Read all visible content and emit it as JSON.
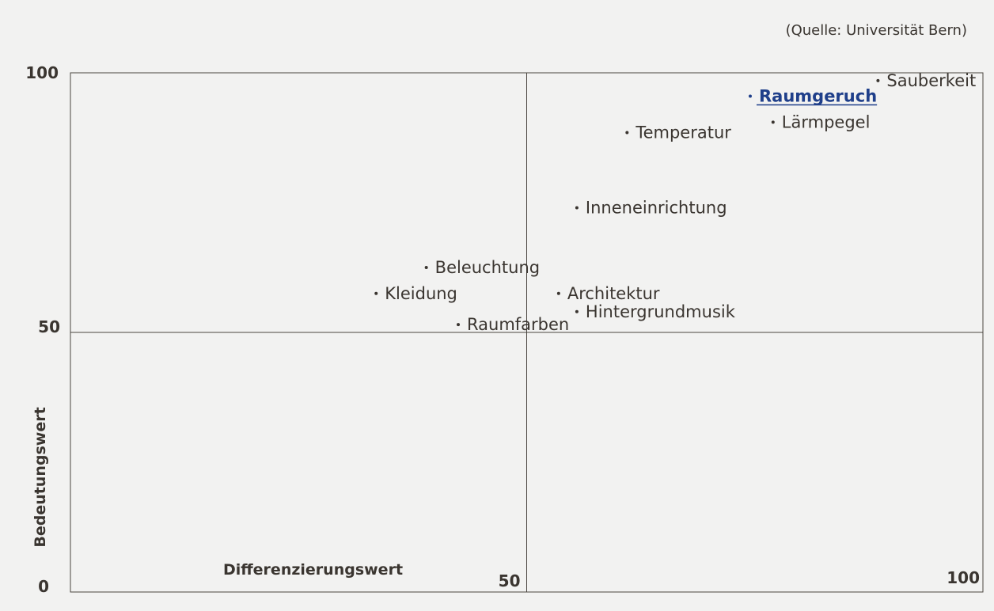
{
  "source": "(Quelle: Universität Bern)",
  "chart_data": {
    "type": "scatter",
    "title": "",
    "xlabel": "Differenzierungswert",
    "ylabel": "Bedeutungswert",
    "xlim": [
      0,
      100
    ],
    "ylim": [
      0,
      100
    ],
    "x_ticks": [
      "50",
      "100"
    ],
    "y_ticks": [
      "100",
      "50",
      "0"
    ],
    "quadrant_lines": {
      "x": 50,
      "y": 50
    },
    "grid": false,
    "highlight_color": "#1f3f8a",
    "points": [
      {
        "label": "Sauberkeit",
        "x": 88.5,
        "y": 98.5
      },
      {
        "label": "Raumgeruch",
        "x": 74.5,
        "y": 95.5,
        "highlight": true
      },
      {
        "label": "Lärmpegel",
        "x": 77,
        "y": 90.5
      },
      {
        "label": "Temperatur",
        "x": 61,
        "y": 88.5
      },
      {
        "label": "Inneneinrichtung",
        "x": 55.5,
        "y": 74
      },
      {
        "label": "Beleuchtung",
        "x": 39,
        "y": 62.5
      },
      {
        "label": "Kleidung",
        "x": 33.5,
        "y": 57.5
      },
      {
        "label": "Architektur",
        "x": 53.5,
        "y": 57.5
      },
      {
        "label": "Hintergrundmusik",
        "x": 55.5,
        "y": 54
      },
      {
        "label": "Raumfarben",
        "x": 42.5,
        "y": 51.5
      }
    ]
  }
}
